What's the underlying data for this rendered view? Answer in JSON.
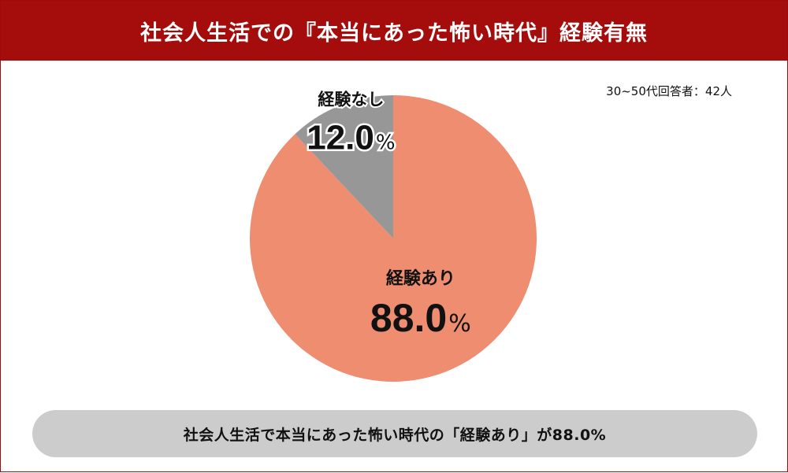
{
  "header": {
    "title": "社会人生活での『本当にあった怖い時代』経験有無"
  },
  "note": "30~50代回答者：42人",
  "summary": "社会人生活で本当にあった怖い時代の「経験あり」が88.0%",
  "colors": {
    "header": "#a50d0d",
    "slice_yes": "#ee8d6f",
    "slice_no": "#979797",
    "summary_bg": "#cccccc"
  },
  "chart_data": {
    "type": "pie",
    "unit": "%",
    "slices": [
      {
        "label": "経験あり",
        "value": 88.0,
        "display": "88.0",
        "color": "#ee8d6f"
      },
      {
        "label": "経験なし",
        "value": 12.0,
        "display": "12.0",
        "color": "#979797"
      }
    ]
  }
}
